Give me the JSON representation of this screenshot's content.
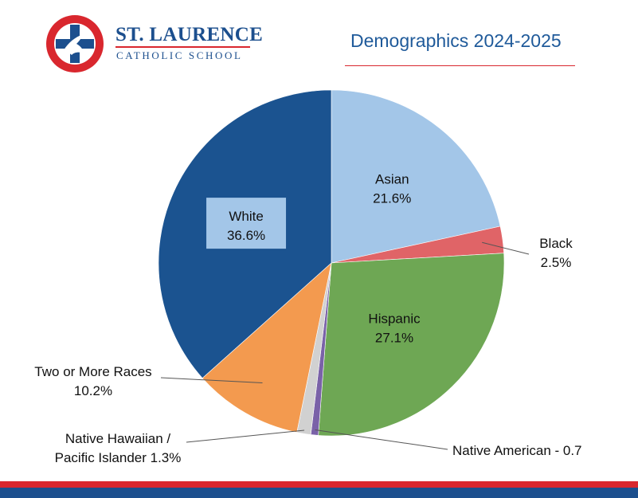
{
  "header": {
    "school_name": "ST. LAURENCE",
    "school_subtitle": "CATHOLIC SCHOOL",
    "page_title": "Demographics 2024-2025"
  },
  "colors": {
    "brand_blue": "#1c4f8e",
    "brand_red": "#d9272e"
  },
  "chart_data": {
    "type": "pie",
    "title": "Demographics 2024-2025",
    "unit": "%",
    "slices": [
      {
        "name": "Asian",
        "label": "Asian",
        "value_label": "21.6%",
        "value": 21.6,
        "color": "#a3c6e8"
      },
      {
        "name": "Black",
        "label": "Black",
        "value_label": "2.5%",
        "value": 2.5,
        "color": "#e06467"
      },
      {
        "name": "Hispanic",
        "label": "Hispanic",
        "value_label": "27.1%",
        "value": 27.1,
        "color": "#6ea754"
      },
      {
        "name": "Native American",
        "label": "Native American - 0.7",
        "value_label": "",
        "value": 0.7,
        "color": "#7a62a8"
      },
      {
        "name": "Native Hawaiian / Pacific Islander",
        "label": "Native Hawaiian /",
        "value_label": "Pacific Islander 1.3%",
        "value": 1.3,
        "color": "#d1d1d1"
      },
      {
        "name": "Two or More Races",
        "label": "Two or More Races",
        "value_label": "10.2%",
        "value": 10.2,
        "color": "#f39a4f"
      },
      {
        "name": "White",
        "label": "White",
        "value_label": "36.6%",
        "value": 36.6,
        "color": "#1b5390"
      }
    ]
  }
}
